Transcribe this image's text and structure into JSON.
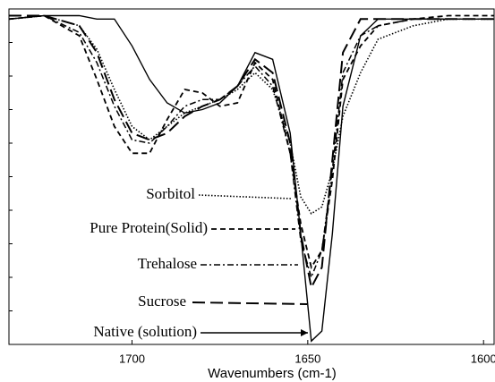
{
  "chart_data": {
    "type": "line",
    "xlabel": "Wavenumbers (cm-1)",
    "x": [
      1735,
      1725,
      1715,
      1710,
      1705,
      1700,
      1695,
      1690,
      1685,
      1680,
      1675,
      1670,
      1665,
      1660,
      1655,
      1652,
      1649,
      1646,
      1643,
      1640,
      1635,
      1630,
      1620,
      1610,
      1600,
      1597
    ],
    "xlim": [
      1735,
      1597
    ],
    "xticks": [
      1700,
      1650,
      1600
    ],
    "ylim": [
      0,
      100
    ],
    "series": [
      {
        "name": "Sorbitol",
        "color": "#000000",
        "style": "dotted",
        "values": [
          97,
          98,
          95,
          88,
          76,
          65,
          61,
          65,
          69,
          71,
          73,
          76,
          81,
          76,
          60,
          44,
          39,
          41,
          52,
          68,
          81,
          91,
          95,
          97,
          97,
          97
        ]
      },
      {
        "name": "Pure Protein(Solid)",
        "color": "#000000",
        "style": "dashed",
        "values": [
          97,
          98,
          92,
          79,
          65,
          57,
          57,
          67,
          76,
          75,
          71,
          72,
          84,
          79,
          57,
          36,
          23,
          28,
          49,
          79,
          89,
          95,
          97,
          98,
          98,
          98
        ]
      },
      {
        "name": "Trehalose",
        "color": "#000000",
        "style": "dashdot",
        "values": [
          97,
          98,
          93,
          84,
          71,
          61,
          60,
          65,
          71,
          73,
          73,
          77,
          83,
          77,
          57,
          31,
          20,
          28,
          52,
          81,
          92,
          95,
          97,
          97,
          97,
          97
        ]
      },
      {
        "name": "Sucrose",
        "color": "#000000",
        "style": "longdash",
        "values": [
          98,
          98,
          95,
          87,
          73,
          63,
          61,
          63,
          68,
          71,
          73,
          77,
          85,
          81,
          60,
          33,
          17,
          23,
          55,
          87,
          97,
          97,
          97,
          97,
          97,
          97
        ]
      },
      {
        "name": "Native (solution)",
        "color": "#000000",
        "style": "solid",
        "values": [
          97,
          98,
          98,
          97,
          97,
          89,
          79,
          72,
          69,
          70,
          72,
          77,
          87,
          85,
          63,
          33,
          1,
          4,
          33,
          71,
          92,
          97,
          97,
          97,
          97,
          97
        ]
      }
    ]
  }
}
